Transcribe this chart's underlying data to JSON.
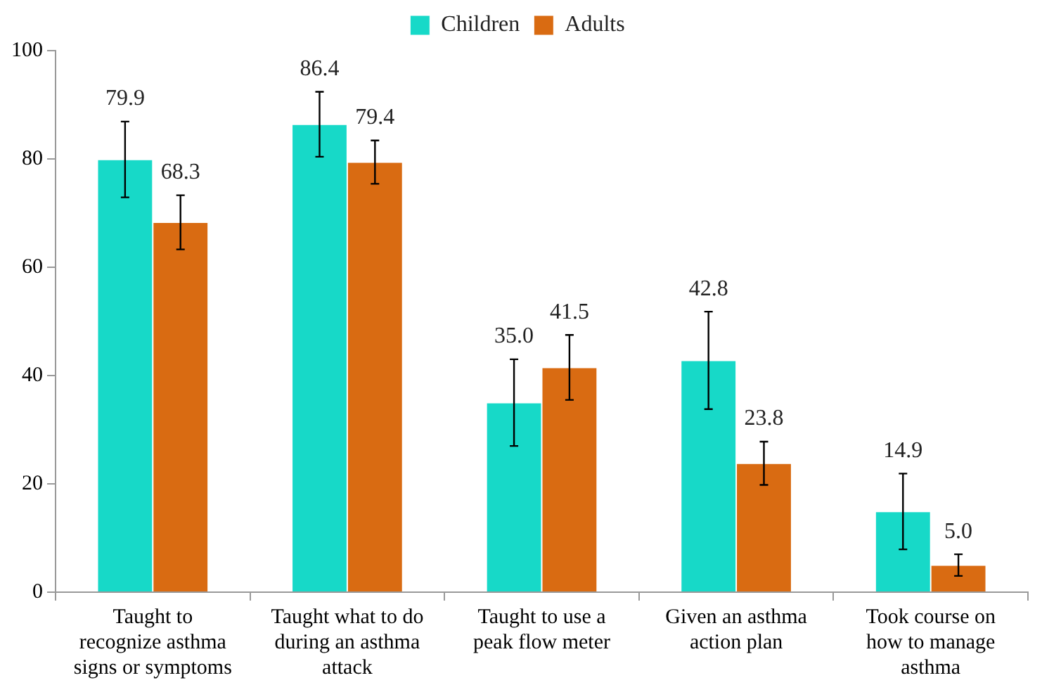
{
  "chart_data": {
    "type": "bar",
    "categories": [
      "Taught to recognize asthma signs or symptoms",
      "Taught what to do during an asthma attack",
      "Taught to use a peak flow meter",
      "Given an asthma action plan",
      "Took course on how to manage asthma"
    ],
    "series": [
      {
        "name": "Children",
        "color": "#17d9c8",
        "values": [
          79.9,
          86.4,
          35.0,
          42.8,
          14.9
        ],
        "value_labels": [
          "79.9",
          "86.4",
          "35.0",
          "42.8",
          "14.9"
        ],
        "errors": [
          7,
          6,
          8,
          9,
          7
        ]
      },
      {
        "name": "Adults",
        "color": "#d96b12",
        "values": [
          68.3,
          79.4,
          41.5,
          23.8,
          5.0
        ],
        "value_labels": [
          "68.3",
          "79.4",
          "41.5",
          "23.8",
          "5.0"
        ],
        "errors": [
          5,
          4,
          6,
          4,
          2
        ]
      }
    ],
    "ylim": [
      0,
      100
    ],
    "yticks": [
      0,
      20,
      40,
      60,
      80,
      100
    ],
    "grid": false,
    "legend": "top"
  }
}
